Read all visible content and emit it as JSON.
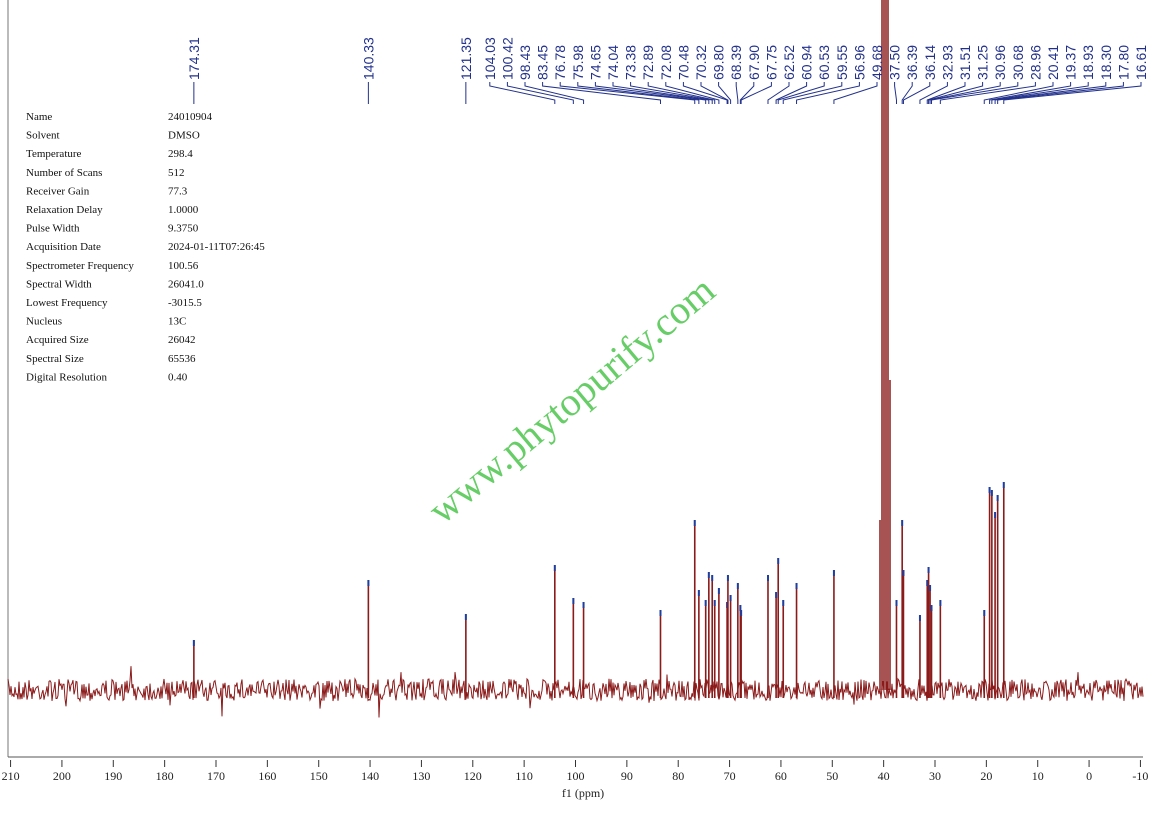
{
  "chart_data": {
    "type": "nmr",
    "parameters": [
      [
        "Name",
        "24010904"
      ],
      [
        "Solvent",
        "DMSO"
      ],
      [
        "Temperature",
        "298.4"
      ],
      [
        "Number of Scans",
        "512"
      ],
      [
        "Receiver Gain",
        "77.3"
      ],
      [
        "Relaxation Delay",
        "1.0000"
      ],
      [
        "Pulse Width",
        "9.3750"
      ],
      [
        "Acquisition Date",
        "2024-01-11T07:26:45"
      ],
      [
        "Spectrometer Frequency",
        "100.56"
      ],
      [
        "Spectral Width",
        "26041.0"
      ],
      [
        "Lowest Frequency",
        "-3015.5"
      ],
      [
        "Nucleus",
        "13C"
      ],
      [
        "Acquired Size",
        "26042"
      ],
      [
        "Spectral Size",
        "65536"
      ],
      [
        "Digital Resolution",
        "0.40"
      ]
    ],
    "watermark": "www.phytopurify.com",
    "x_label": "f1 (ppm)",
    "x": [
      174.31,
      140.33,
      121.35,
      104.03,
      100.42,
      98.43,
      83.45,
      76.78,
      75.98,
      74.65,
      74.04,
      73.38,
      72.89,
      72.08,
      70.48,
      70.32,
      69.8,
      68.39,
      67.9,
      67.75,
      62.52,
      60.94,
      60.53,
      59.55,
      56.96,
      49.68,
      37.5,
      36.39,
      36.14,
      32.93,
      31.51,
      31.25,
      30.96,
      30.68,
      28.96,
      20.41,
      19.37,
      18.93,
      18.3,
      17.8,
      16.61
    ],
    "x_labels": [
      "174.31",
      "140.33",
      "121.35",
      "104.03",
      "100.42",
      "98.43",
      "83.45",
      "76.78",
      "75.98",
      "74.65",
      "74.04",
      "73.38",
      "72.89",
      "72.08",
      "70.48",
      "70.32",
      "69.80",
      "68.39",
      "67.90",
      "67.75",
      "62.52",
      "60.94",
      "60.53",
      "59.55",
      "56.96",
      "49.68",
      "37.50",
      "36.39",
      "36.14",
      "32.93",
      "31.51",
      "31.25",
      "30.96",
      "30.68",
      "28.96",
      "20.41",
      "19.37",
      "18.93",
      "18.30",
      "17.80",
      "16.61"
    ],
    "values": [
      50,
      110,
      76,
      125,
      92,
      88,
      80,
      170,
      100,
      90,
      118,
      115,
      90,
      102,
      88,
      115,
      95,
      107,
      85,
      80,
      115,
      98,
      132,
      90,
      107,
      120,
      90,
      170,
      120,
      75,
      110,
      123,
      105,
      85,
      90,
      80,
      203,
      200,
      178,
      195,
      208
    ],
    "color": "#8b1a1a",
    "peak_top_color": "#1f3fa0",
    "label_color": "#22318c",
    "xlim": [
      210.5,
      -10.5
    ],
    "ylim": [
      -67,
      690
    ],
    "xticks": [
      210,
      200,
      190,
      180,
      170,
      160,
      150,
      140,
      130,
      120,
      110,
      100,
      90,
      80,
      70,
      60,
      50,
      40,
      30,
      20,
      10,
      0,
      -10
    ]
  }
}
